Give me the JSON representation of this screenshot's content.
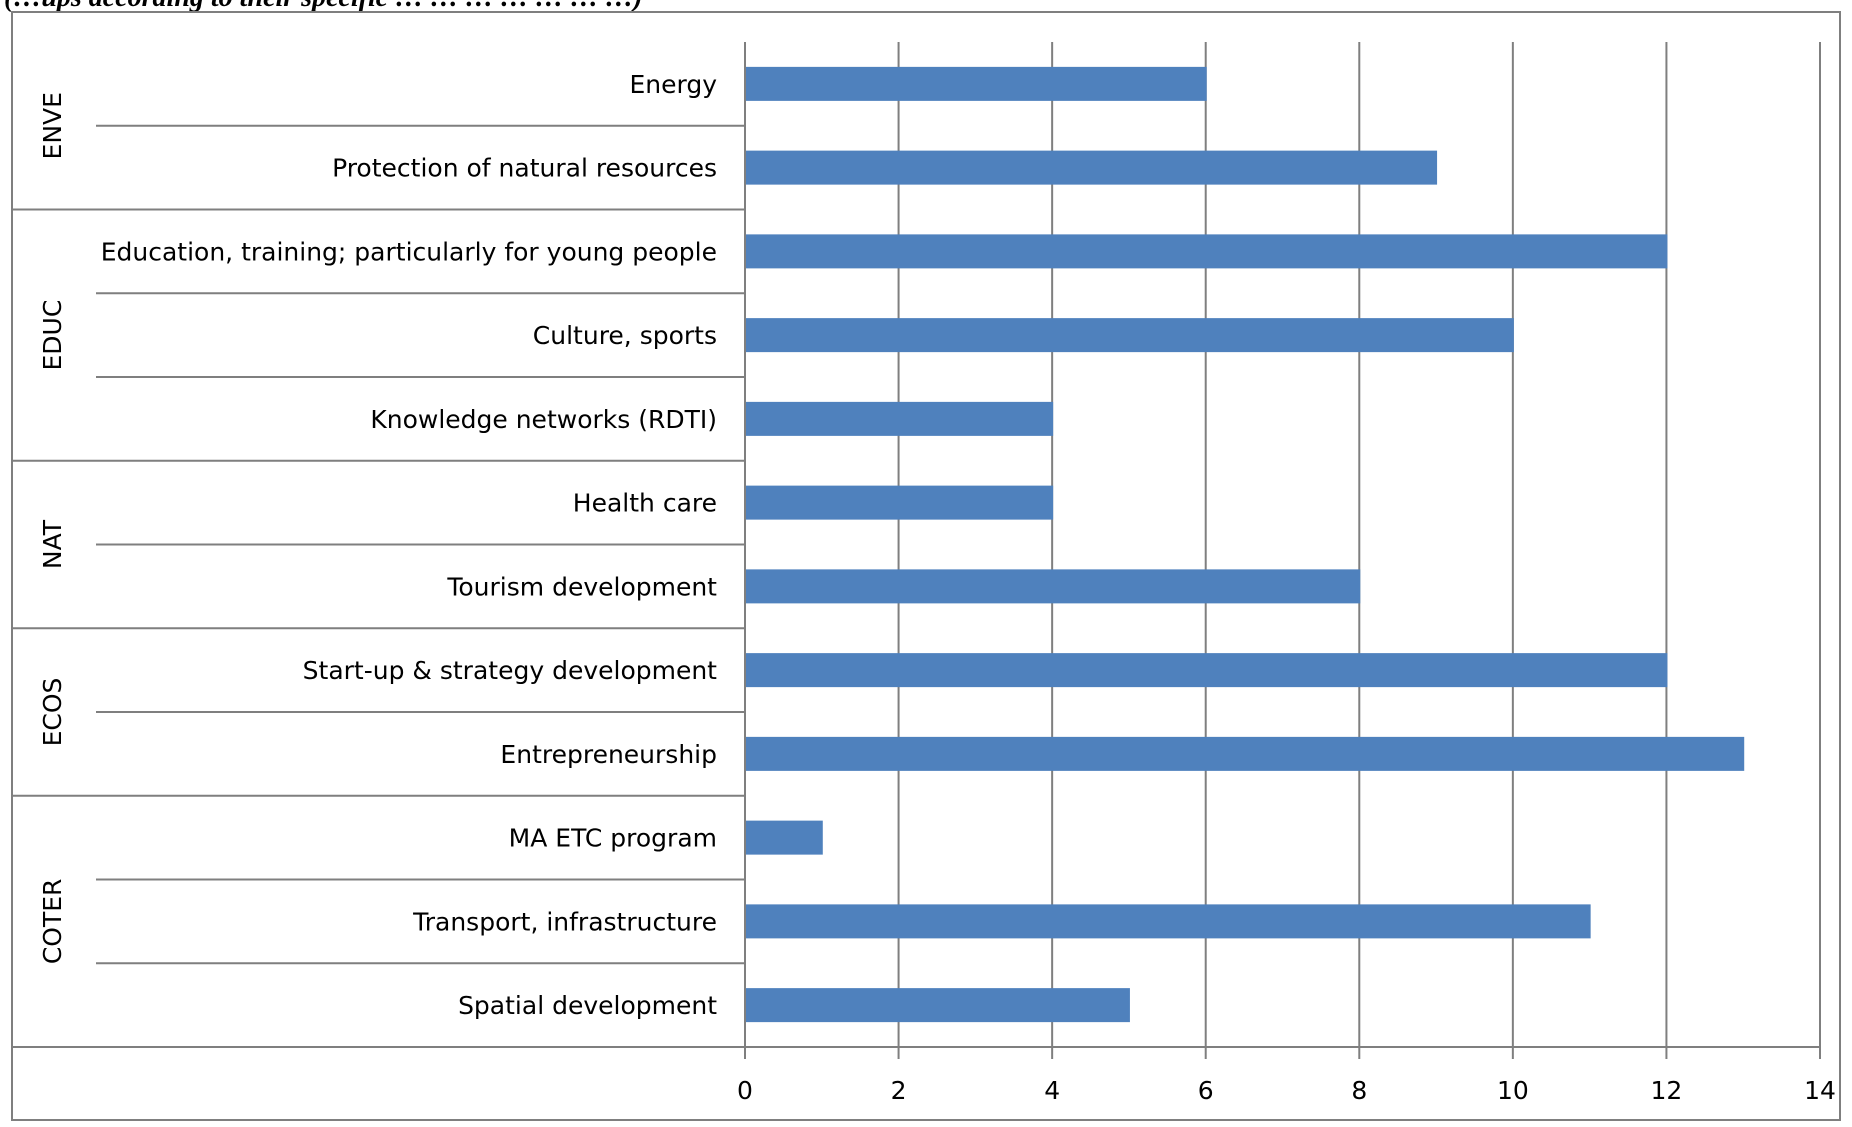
{
  "caption": "(…ups according to their specific … … … … … … …)",
  "chart_data": {
    "type": "bar",
    "orientation": "horizontal",
    "title": "",
    "xlabel": "",
    "ylabel": "",
    "xlim": [
      0,
      14
    ],
    "x_ticks": [
      "0",
      "2",
      "4",
      "6",
      "8",
      "10",
      "12",
      "14"
    ],
    "grid": "vertical",
    "legend": "none",
    "bar_color": "#4f81bd",
    "groups": [
      {
        "name": "ENVE",
        "items": [
          {
            "label": "Energy",
            "value": 6
          },
          {
            "label": "Protection of natural resources",
            "value": 9
          }
        ]
      },
      {
        "name": "EDUC",
        "items": [
          {
            "label": "Education, training; particularly for young people",
            "value": 12
          },
          {
            "label": "Culture, sports",
            "value": 10
          },
          {
            "label": "Knowledge networks (RDTI)",
            "value": 4
          }
        ]
      },
      {
        "name": "NAT",
        "items": [
          {
            "label": "Health care",
            "value": 4
          },
          {
            "label": "Tourism development",
            "value": 8
          }
        ]
      },
      {
        "name": "ECOS",
        "items": [
          {
            "label": "Start-up & strategy development",
            "value": 12
          },
          {
            "label": "Entrepreneurship",
            "value": 13
          }
        ]
      },
      {
        "name": "COTER",
        "items": [
          {
            "label": "MA ETC program",
            "value": 1
          },
          {
            "label": "Transport, infrastructure",
            "value": 11
          },
          {
            "label": "Spatial development",
            "value": 5
          }
        ]
      }
    ]
  }
}
